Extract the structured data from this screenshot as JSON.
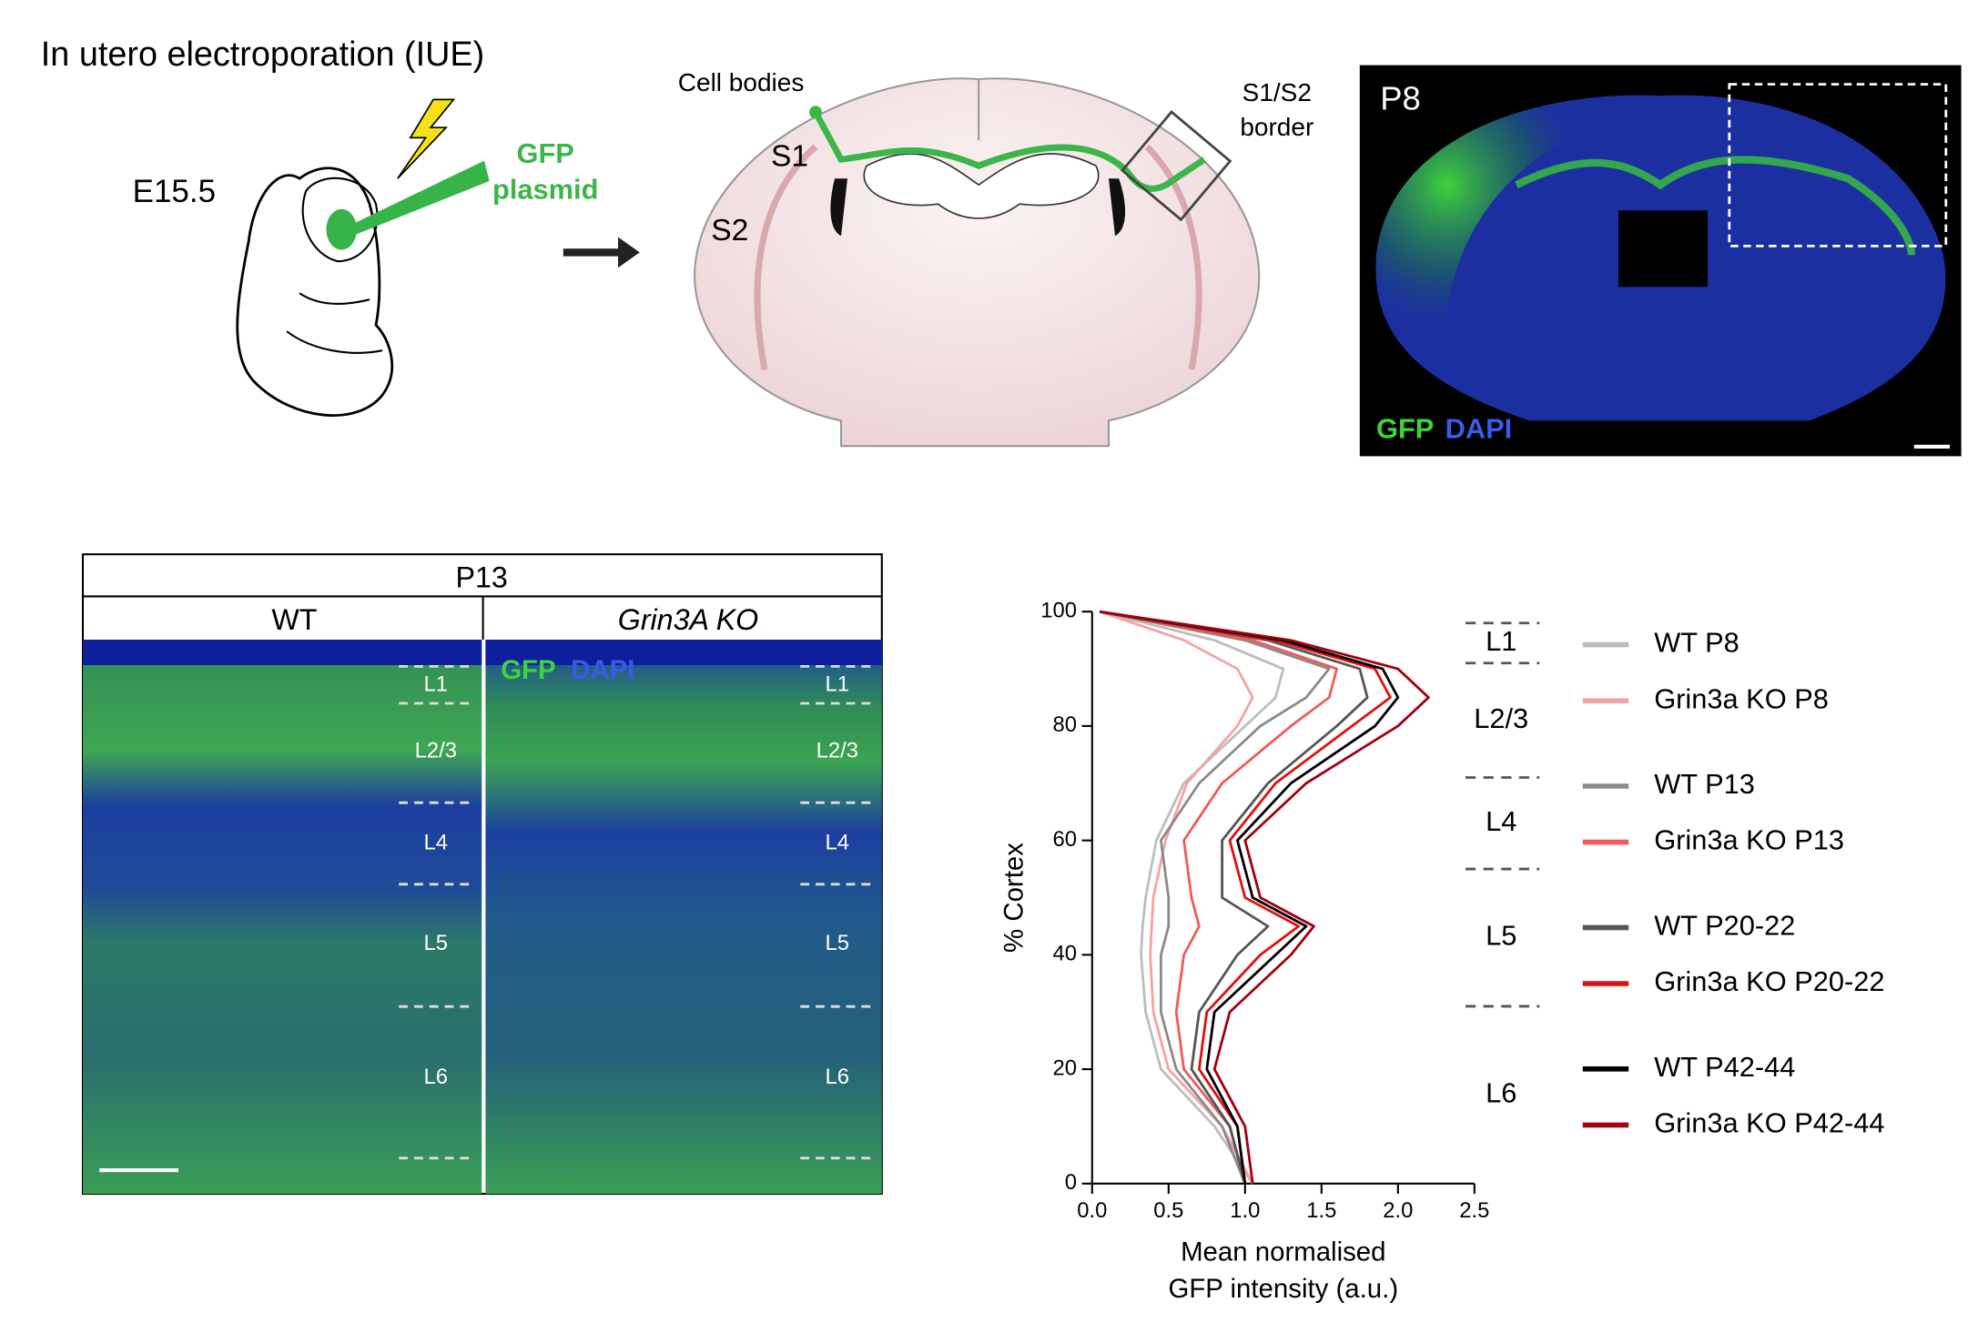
{
  "iue": {
    "title": "In utero electroporation (IUE)",
    "age": "E15.5",
    "plasmid": [
      "GFP",
      "plasmid"
    ]
  },
  "schematic": {
    "cell_bodies": "Cell bodies",
    "s1": "S1",
    "s2": "S2",
    "border": [
      "S1/S2",
      "border"
    ]
  },
  "p8_image": {
    "age": "P8",
    "stain": [
      "GFP",
      "DAPI"
    ]
  },
  "p13_panel": {
    "age": "P13",
    "columns": [
      "WT",
      "Grin3A KO"
    ],
    "stain": [
      "GFP",
      "DAPI"
    ],
    "layers": [
      "L1",
      "L2/3",
      "L4",
      "L5",
      "L6"
    ]
  },
  "chart_data": {
    "type": "line",
    "y_label": "% Cortex",
    "x_label": [
      "Mean normalised",
      "GFP intensity (a.u.)"
    ],
    "y": [
      0,
      10,
      20,
      30,
      40,
      45,
      50,
      60,
      70,
      80,
      85,
      90,
      95,
      100
    ],
    "series": [
      {
        "name": "WT P8",
        "color": "#bdbdbd",
        "values": [
          1.05,
          0.8,
          0.45,
          0.35,
          0.32,
          0.33,
          0.35,
          0.42,
          0.6,
          1.0,
          1.2,
          1.25,
          0.8,
          0.05
        ]
      },
      {
        "name": "Grin3a KO P8",
        "color": "#f4a3a3",
        "values": [
          1.05,
          0.85,
          0.5,
          0.4,
          0.38,
          0.39,
          0.4,
          0.48,
          0.62,
          0.95,
          1.05,
          0.95,
          0.6,
          0.05
        ]
      },
      {
        "name": "WT P13",
        "color": "#8a8a8a",
        "values": [
          1.0,
          0.85,
          0.55,
          0.45,
          0.45,
          0.5,
          0.5,
          0.45,
          0.7,
          1.1,
          1.4,
          1.55,
          1.0,
          0.05
        ]
      },
      {
        "name": "Grin3a KO P13",
        "color": "#f05a5a",
        "values": [
          1.0,
          0.9,
          0.6,
          0.55,
          0.6,
          0.7,
          0.65,
          0.6,
          0.85,
          1.3,
          1.55,
          1.6,
          1.05,
          0.05
        ]
      },
      {
        "name": "WT P20-22",
        "color": "#555555",
        "values": [
          1.0,
          0.9,
          0.65,
          0.7,
          0.95,
          1.15,
          0.85,
          0.85,
          1.15,
          1.6,
          1.8,
          1.75,
          1.15,
          0.05
        ]
      },
      {
        "name": "Grin3a KO P20-22",
        "color": "#e01010",
        "values": [
          1.0,
          0.95,
          0.7,
          0.75,
          1.1,
          1.35,
          1.0,
          0.9,
          1.2,
          1.7,
          1.95,
          1.85,
          1.2,
          0.05
        ]
      },
      {
        "name": "WT P42-44",
        "color": "#000000",
        "values": [
          1.0,
          0.95,
          0.75,
          0.8,
          1.2,
          1.4,
          1.05,
          0.95,
          1.3,
          1.85,
          2.0,
          1.9,
          1.25,
          0.05
        ]
      },
      {
        "name": "Grin3a KO P42-44",
        "color": "#a0000f",
        "values": [
          1.05,
          1.0,
          0.8,
          0.9,
          1.3,
          1.45,
          1.1,
          1.0,
          1.4,
          2.0,
          2.2,
          2.0,
          1.3,
          0.05
        ]
      }
    ],
    "xlim": [
      0,
      2.5
    ],
    "xticks": [
      {
        "value": 0,
        "label": "0.0"
      },
      0.5,
      {
        "value": 1,
        "label": "1.0"
      },
      1.5,
      {
        "value": 2,
        "label": "2.0"
      },
      2.5
    ],
    "ylim": [
      0,
      100
    ],
    "yticks": [
      0,
      20,
      40,
      60,
      80,
      100
    ],
    "layers": [
      "L1",
      "L2/3",
      "L4",
      "L5",
      "L6"
    ],
    "layer_bounds": [
      98,
      91,
      71,
      55,
      31
    ]
  }
}
